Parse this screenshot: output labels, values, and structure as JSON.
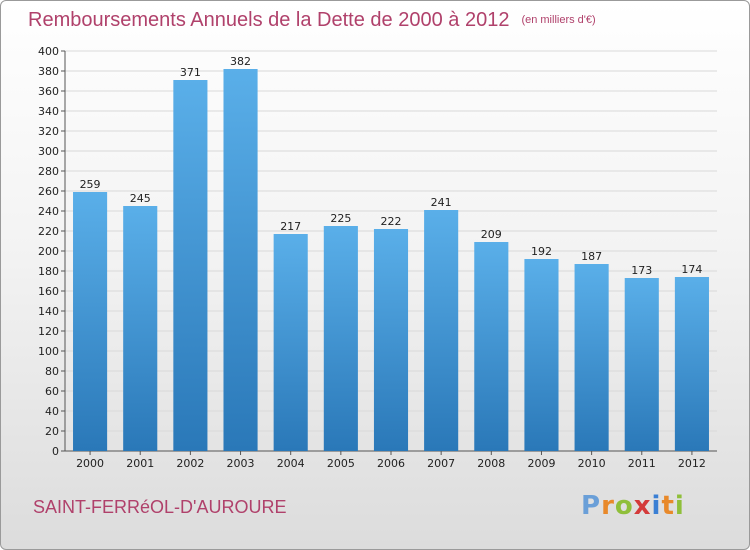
{
  "header": {
    "title": "Remboursements Annuels de la Dette de 2000 à 2012",
    "unit": "(en milliers d'€)"
  },
  "footer": {
    "commune": "SAINT-FERRéOL-D'AUROURE",
    "logo": [
      "P",
      "r",
      "o",
      "x",
      "i",
      "t",
      "i"
    ]
  },
  "colors": {
    "bar_top": "#5aafe9",
    "bar_bottom": "#2a78b8",
    "title": "#b0416b",
    "logo": [
      "#6a9fd8",
      "#e8892a",
      "#8fbf3a",
      "#d43a3a",
      "#3a7fd4",
      "#e8892a",
      "#8fbf3a"
    ]
  },
  "chart_data": {
    "type": "bar",
    "categories": [
      "2000",
      "2001",
      "2002",
      "2003",
      "2004",
      "2005",
      "2006",
      "2007",
      "2008",
      "2009",
      "2010",
      "2011",
      "2012"
    ],
    "values": [
      259,
      245,
      371,
      382,
      217,
      225,
      222,
      241,
      209,
      192,
      187,
      173,
      174
    ],
    "ylim": [
      0,
      400
    ],
    "ytick_step": 20,
    "grid": true,
    "data_labels": true
  }
}
